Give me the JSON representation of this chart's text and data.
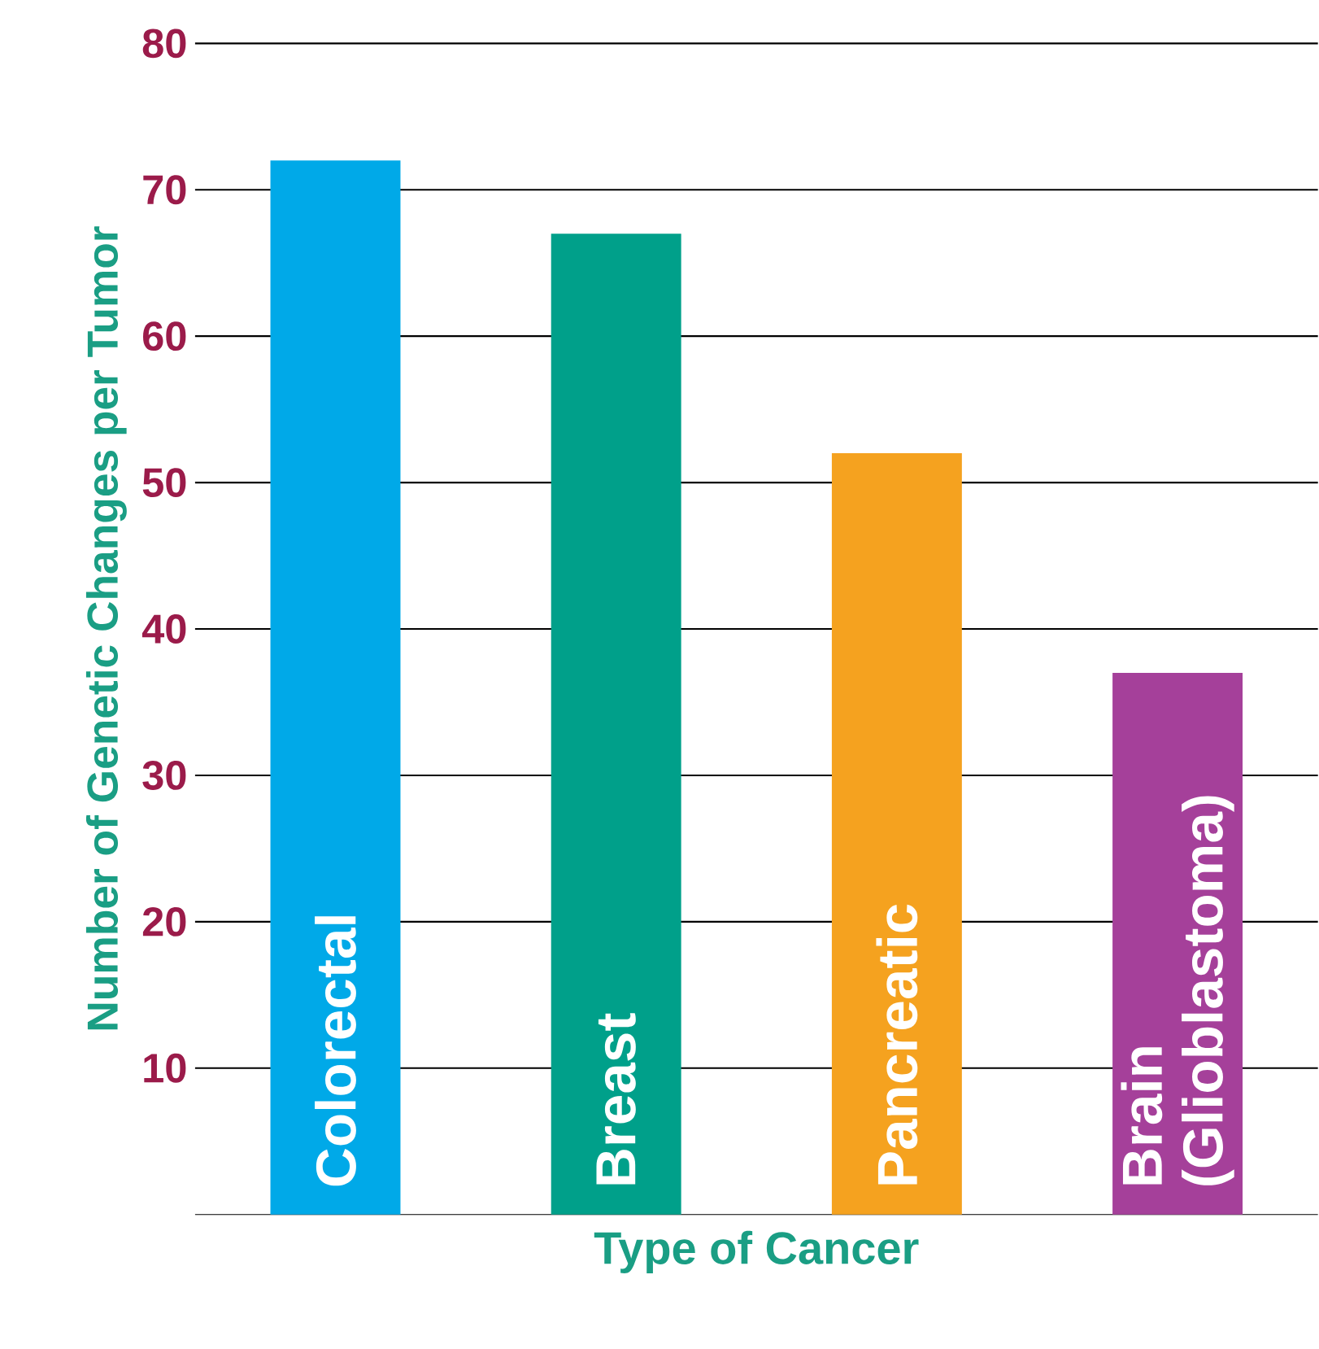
{
  "chart_data": {
    "type": "bar",
    "xlabel": "Type of Cancer",
    "ylabel": "Number of Genetic Changes per Tumor",
    "categories": [
      "Colorectal",
      "Breast",
      "Pancreatic",
      "Brain (Glioblastoma)"
    ],
    "values": [
      72,
      67,
      52,
      37
    ],
    "colors": [
      "#00a9e8",
      "#00a08a",
      "#f5a21f",
      "#a5409a"
    ],
    "ylim": [
      0,
      80
    ],
    "yticks": [
      10,
      20,
      30,
      40,
      50,
      60,
      70,
      80
    ],
    "grid": "y"
  }
}
